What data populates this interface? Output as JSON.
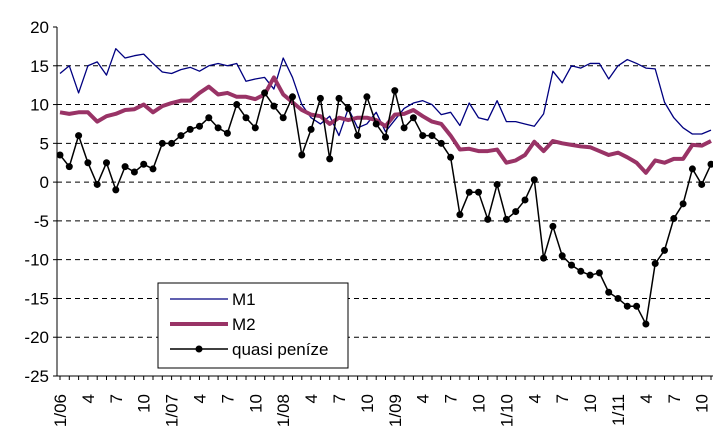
{
  "chart_data": {
    "type": "line",
    "categories": [
      "1/06",
      null,
      null,
      "4",
      null,
      null,
      "7",
      null,
      null,
      "10",
      null,
      null,
      "1/07",
      null,
      null,
      "4",
      null,
      null,
      "7",
      null,
      null,
      "10",
      null,
      null,
      "1/08",
      null,
      null,
      "4",
      null,
      null,
      "7",
      null,
      null,
      "10",
      null,
      null,
      "1/09",
      null,
      null,
      "4",
      null,
      null,
      "7",
      null,
      null,
      "10",
      null,
      null,
      "1/10",
      null,
      null,
      "4",
      null,
      null,
      "7",
      null,
      null,
      "10",
      null,
      null,
      "1/11",
      null,
      null,
      "4",
      null,
      null,
      "7",
      null,
      null,
      "10",
      null
    ],
    "series": [
      {
        "name": "M1",
        "color": "#000080",
        "width": 1.3,
        "values": [
          14,
          15,
          11.5,
          15,
          15.5,
          13.8,
          17.2,
          16,
          16.3,
          16.5,
          15.3,
          14.2,
          14,
          14.5,
          14.8,
          14.3,
          15,
          15.3,
          15,
          15.3,
          13,
          13.3,
          13.5,
          12,
          16,
          13.5,
          10,
          8.3,
          7.5,
          8.5,
          6,
          9.5,
          7,
          7.5,
          9,
          6.5,
          8,
          9.5,
          10.2,
          10.5,
          10,
          8.7,
          9,
          7.3,
          10.2,
          8.3,
          8,
          10.5,
          7.8,
          7.8,
          7.5,
          7.2,
          8.8,
          14.3,
          12.8,
          15,
          14.7,
          15.3,
          15.3,
          13.3,
          15,
          15.8,
          15.3,
          14.7,
          14.6,
          10.3,
          8.3,
          7,
          6.2,
          6.2,
          6.7
        ]
      },
      {
        "name": "M2",
        "color": "#993366",
        "width": 4,
        "values": [
          9,
          8.8,
          9,
          9,
          7.8,
          8.5,
          8.8,
          9.3,
          9.4,
          10,
          9,
          9.8,
          10.2,
          10.5,
          10.5,
          11.5,
          12.3,
          11.3,
          11.5,
          11,
          11,
          10.7,
          11.3,
          13.5,
          11.3,
          10.3,
          9.3,
          8.7,
          8.5,
          7.5,
          8.3,
          8,
          8.3,
          8.3,
          8,
          7.2,
          8.7,
          8.8,
          9.3,
          8.5,
          7.8,
          7.5,
          6,
          4.2,
          4.3,
          4,
          4,
          4.2,
          2.5,
          2.8,
          3.5,
          5.2,
          4,
          5.3,
          5,
          4.8,
          4.6,
          4.5,
          4,
          3.5,
          3.8,
          3.2,
          2.5,
          1.2,
          2.8,
          2.5,
          3,
          3,
          4.8,
          4.7,
          5.3
        ]
      },
      {
        "name": "quasi peníze",
        "color": "#000000",
        "width": 1.5,
        "marker": "circle",
        "values": [
          3.5,
          2,
          6,
          2.5,
          -0.3,
          2.5,
          -1,
          2,
          1.3,
          2.3,
          1.7,
          5,
          5,
          6,
          6.8,
          7.2,
          8.3,
          7,
          6.3,
          10,
          8.3,
          7,
          11.5,
          9.8,
          8.3,
          11,
          3.5,
          6.8,
          10.8,
          3,
          10.8,
          9.5,
          6,
          11,
          7.5,
          5.8,
          11.8,
          7,
          8.3,
          6,
          6,
          5,
          3.2,
          -4.2,
          -1.3,
          -1.3,
          -4.8,
          -0.3,
          -4.8,
          -3.8,
          -2.3,
          0.3,
          -9.8,
          -5.7,
          -9.5,
          -10.7,
          -11.5,
          -12,
          -11.7,
          -14.2,
          -15,
          -16,
          -16,
          -18.3,
          -10.5,
          -8.8,
          -4.7,
          -2.8,
          1.7,
          -0.3,
          2.3
        ]
      }
    ],
    "ylim": [
      -25,
      20
    ],
    "yticks": [
      -25,
      -20,
      -15,
      -10,
      -5,
      0,
      5,
      10,
      15,
      20
    ],
    "grid": true
  }
}
